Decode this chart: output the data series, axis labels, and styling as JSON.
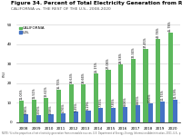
{
  "title": "Figure 34. Percent of Total Electricity Generation from Renewable Sources",
  "subtitle": "CALIFORNIA vs. THE REST OF THE U.S., 2008-2020",
  "ylabel": "(%)",
  "years": [
    "2008",
    "2009",
    "2010",
    "2011",
    "2012",
    "2013",
    "2014",
    "2015",
    "2016",
    "2017",
    "2018",
    "2019",
    "2020"
  ],
  "california": [
    11.05,
    11.51,
    12.61,
    16.75,
    19.63,
    19.66,
    25.15,
    27.06,
    29.58,
    32.34,
    37.45,
    42.78,
    45.78
  ],
  "us": [
    3.96,
    3.91,
    3.98,
    4.76,
    5.35,
    6.19,
    7.35,
    7.35,
    8.06,
    8.65,
    9.56,
    10.75,
    11.59
  ],
  "ca_color": "#5cb85c",
  "us_color": "#4472c4",
  "bar_width": 0.38,
  "ylim": [
    0,
    50
  ],
  "yticks": [
    0,
    10,
    20,
    30,
    40,
    50
  ],
  "legend_ca": "CALIFORNIA",
  "legend_us": "U.S.",
  "background_color": "#ffffff",
  "grid_color": "#cccccc",
  "title_fontsize": 4.2,
  "subtitle_fontsize": 3.2,
  "label_fontsize": 3.0,
  "tick_fontsize": 3.0,
  "bar_label_fontsize": 2.4,
  "footnote": "NOTE: % is the proportion of net electricity generation from renewable sources. U.S. Department of Energy, Energy Information Administration, 2021, U.S., p. 2."
}
